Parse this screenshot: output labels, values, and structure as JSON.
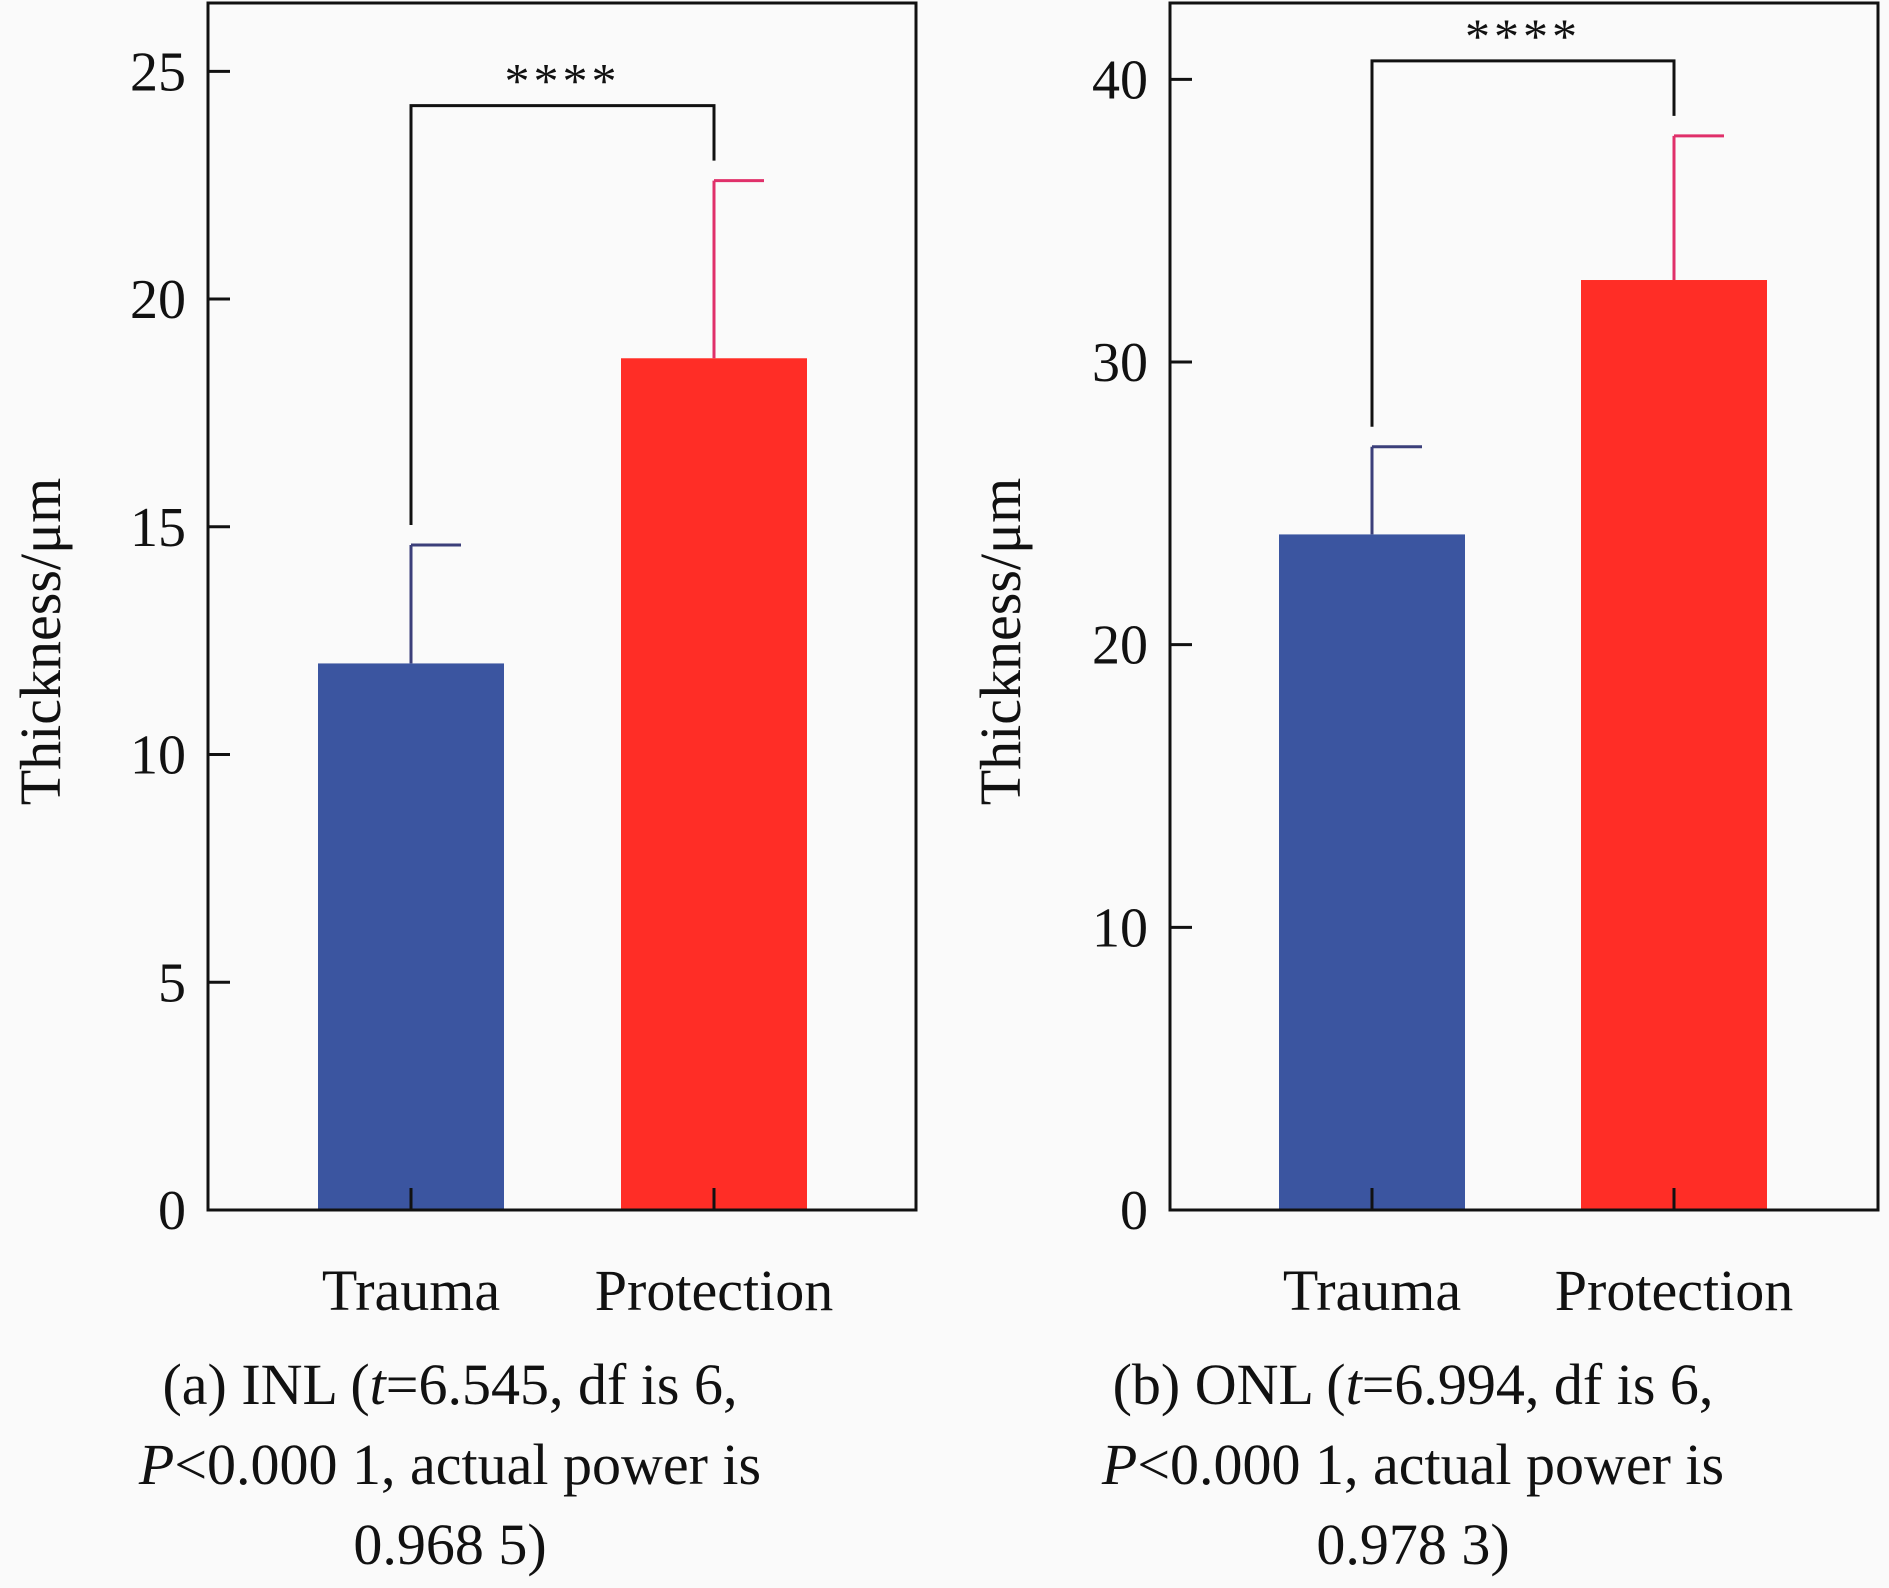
{
  "chart_data": [
    {
      "type": "bar",
      "ylabel": "Thickness/μm",
      "ylim": [
        0,
        26.5
      ],
      "yticks": [
        0,
        5,
        10,
        15,
        20,
        25
      ],
      "categories": [
        "Trauma",
        "Protection"
      ],
      "values": [
        12.0,
        18.7
      ],
      "errors": [
        2.6,
        3.9
      ],
      "colors": [
        "#3b55a0",
        "#ff2d26"
      ],
      "error_colors": [
        "#3b3f7a",
        "#e0306a"
      ],
      "significance": "****",
      "caption": {
        "line1_prefix": "(a) INL (",
        "line1_t": "t",
        "line1_suffix": "=6.545, df is 6,",
        "line2_p": "P",
        "line2_suffix": "<0.000 1, actual power is",
        "line3": "0.968 5)"
      }
    },
    {
      "type": "bar",
      "ylabel": "Thickness/μm",
      "ylim": [
        0,
        42.7
      ],
      "yticks": [
        0,
        10,
        20,
        30,
        40
      ],
      "categories": [
        "Trauma",
        "Protection"
      ],
      "values": [
        23.9,
        32.9
      ],
      "errors": [
        3.1,
        5.1
      ],
      "colors": [
        "#3b55a0",
        "#ff2d26"
      ],
      "error_colors": [
        "#3b3f7a",
        "#e0306a"
      ],
      "significance": "****",
      "caption": {
        "line1_prefix": "(b) ONL (",
        "line1_t": "t",
        "line1_suffix": "=6.994, df is 6,",
        "line2_p": "P",
        "line2_suffix": "<0.000 1, actual power is",
        "line3": "0.978 3)"
      }
    }
  ]
}
